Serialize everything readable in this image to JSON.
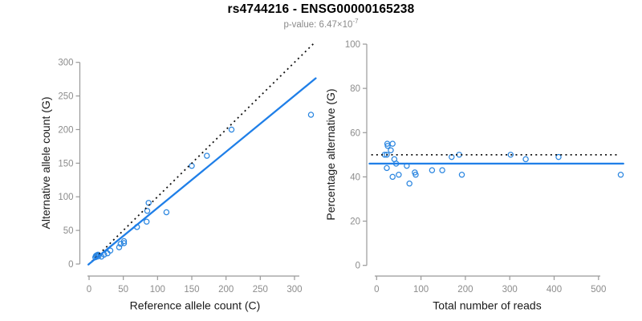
{
  "header": {
    "title": "rs4744216 - ENSG00000165238",
    "pvalue_prefix": "p-value: 6.47×10",
    "pvalue_exponent": "-7"
  },
  "colors": {
    "point_blue": "#2b86e0",
    "line_blue": "#1f7fe8",
    "dotted_black": "#111111",
    "axis_gray": "#999999",
    "tick_text_gray": "#8c8c8c",
    "label_black": "#1a1a1a"
  },
  "chart_data": [
    {
      "type": "scatter",
      "name": "allele-counts",
      "xlabel": "Reference allele count (C)",
      "ylabel": "Alternative allele count (G)",
      "xlim": [
        0,
        330
      ],
      "ylim": [
        0,
        330
      ],
      "xticks": [
        0,
        50,
        100,
        150,
        200,
        250,
        300
      ],
      "yticks": [
        0,
        50,
        100,
        150,
        200,
        250,
        300
      ],
      "grid": false,
      "legend": null,
      "points": [
        [
          9,
          10
        ],
        [
          10,
          12
        ],
        [
          11,
          13
        ],
        [
          12,
          11
        ],
        [
          13,
          14
        ],
        [
          14,
          12
        ],
        [
          18,
          11
        ],
        [
          22,
          14
        ],
        [
          27,
          16
        ],
        [
          31,
          20
        ],
        [
          44,
          25
        ],
        [
          46,
          30
        ],
        [
          51,
          31
        ],
        [
          51,
          34
        ],
        [
          70,
          55
        ],
        [
          84,
          63
        ],
        [
          85,
          79
        ],
        [
          87,
          91
        ],
        [
          113,
          77
        ],
        [
          150,
          146
        ],
        [
          172,
          161
        ],
        [
          208,
          200
        ],
        [
          324,
          222
        ]
      ],
      "lines": [
        {
          "name": "identity-line",
          "style": "dotted",
          "color": "dotted_black",
          "from": [
            -1,
            -1
          ],
          "to": [
            329,
            329
          ]
        },
        {
          "name": "regression-line",
          "style": "solid",
          "color": "line_blue",
          "from": [
            -1,
            -0.8
          ],
          "to": [
            331,
            276.3
          ]
        }
      ]
    },
    {
      "type": "scatter",
      "name": "percentage-alternative",
      "xlabel": "Total number of reads",
      "ylabel": "Percentage alternative (G)",
      "xlim": [
        0,
        560
      ],
      "ylim": [
        0,
        100
      ],
      "xticks": [
        0,
        100,
        200,
        300,
        400,
        500
      ],
      "yticks": [
        0,
        20,
        40,
        60,
        80,
        100
      ],
      "grid": false,
      "legend": null,
      "points": [
        [
          18,
          50
        ],
        [
          23,
          50
        ],
        [
          23,
          44
        ],
        [
          24,
          55
        ],
        [
          25,
          54
        ],
        [
          32,
          52
        ],
        [
          36,
          55
        ],
        [
          36,
          40
        ],
        [
          40,
          48
        ],
        [
          44,
          46
        ],
        [
          50,
          41
        ],
        [
          68,
          45
        ],
        [
          74,
          37
        ],
        [
          86,
          42
        ],
        [
          88,
          41
        ],
        [
          125,
          43
        ],
        [
          148,
          43
        ],
        [
          169,
          49
        ],
        [
          186,
          50
        ],
        [
          192,
          41
        ],
        [
          302,
          50
        ],
        [
          336,
          48
        ],
        [
          410,
          49
        ],
        [
          550,
          41
        ]
      ],
      "lines": [
        {
          "name": "expected-50-line",
          "style": "dotted",
          "color": "dotted_black",
          "from": [
            -12,
            50
          ],
          "to": [
            541,
            50
          ]
        },
        {
          "name": "mean-percentage-line",
          "style": "solid",
          "color": "line_blue",
          "from": [
            -16,
            46
          ],
          "to": [
            556,
            46
          ]
        }
      ]
    }
  ]
}
